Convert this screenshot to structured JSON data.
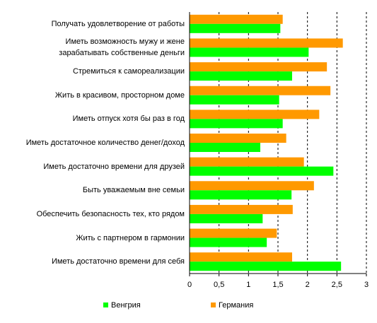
{
  "chart_data": {
    "type": "bar",
    "orientation": "horizontal",
    "categories": [
      "Получать удовлетворение от работы",
      "Иметь возможность мужу и жене зарабатывать собственные деньги",
      "Стремиться к самореализации",
      "Жить в красивом, просторном доме",
      "Иметь отпуск хотя бы раз в год",
      "Иметь достаточное количество денег/доход",
      "Иметь достаточно времени для друзей",
      "Быть уважаемым вне семьи",
      "Обеспечить безопасность тех, кто рядом",
      "Жить с партнером в гармонии",
      "Иметь достаточно времени для себя"
    ],
    "series": [
      {
        "name": "Германия",
        "color": "#ff9900",
        "values": [
          1.58,
          2.6,
          2.33,
          2.39,
          2.2,
          1.64,
          1.94,
          2.11,
          1.75,
          1.48,
          1.74
        ]
      },
      {
        "name": "Венгрия",
        "color": "#00ff00",
        "values": [
          1.54,
          2.02,
          1.74,
          1.52,
          1.58,
          1.2,
          2.44,
          1.73,
          1.24,
          1.31,
          2.57
        ]
      }
    ],
    "xlim": [
      0,
      3
    ],
    "xticks": [
      0,
      {
        "value": 0.5,
        "label": "0,5"
      },
      1,
      {
        "value": 1.5,
        "label": "1,5"
      },
      2,
      {
        "value": 2.5,
        "label": "2,5"
      },
      3
    ],
    "grid": true,
    "legend": "bottom"
  }
}
